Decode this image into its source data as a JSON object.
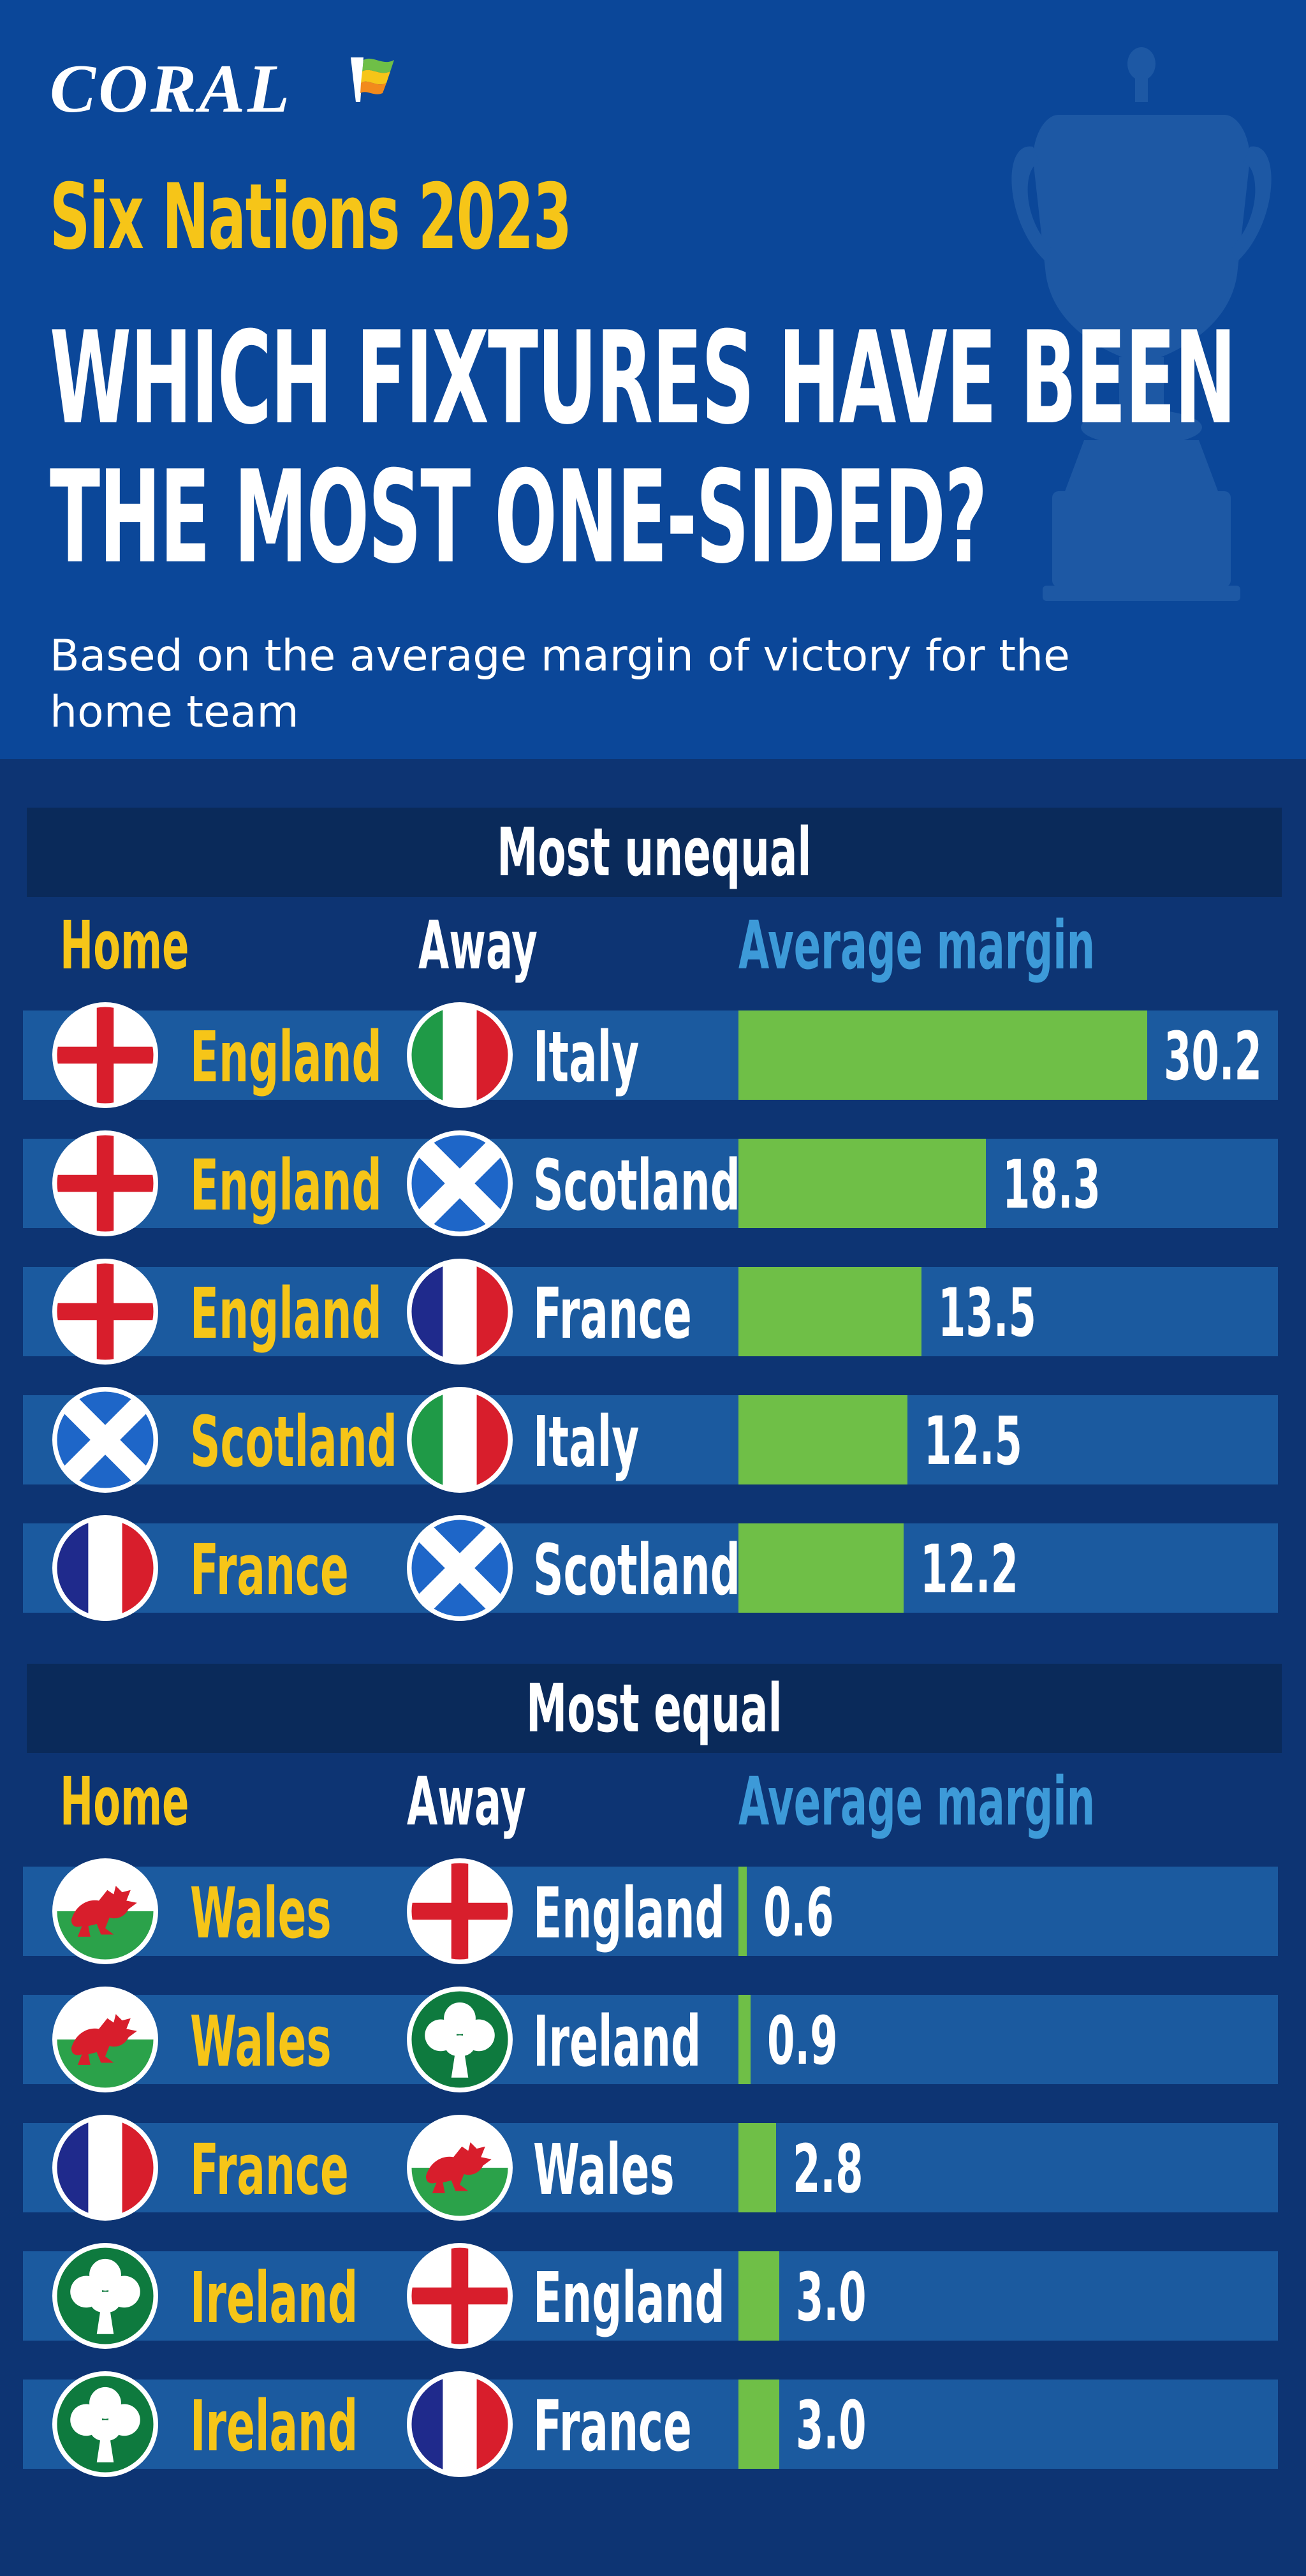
{
  "brand": {
    "logo_text": "CORAL"
  },
  "header": {
    "pre_title": "Six Nations 2023",
    "title_line1": "WHICH FIXTURES HAVE BEEN",
    "title_line2": "THE MOST ONE-SIDED?",
    "subtitle_line1": "Based on the average margin of victory for the",
    "subtitle_line2": "home team"
  },
  "columns": {
    "home": "Home",
    "away": "Away",
    "margin": "Average margin"
  },
  "colors": {
    "background": "#0d3473",
    "header_bg": "#0b4799",
    "section_head_bg": "#0a2a5a",
    "row_bg": "#1b5a9f",
    "bar": "#6fbf47",
    "home_text": "#f6c518",
    "margin_header_text": "#3d9ad8"
  },
  "chart_data": [
    {
      "type": "bar",
      "orientation": "horizontal",
      "title": "Most unequal",
      "xlim": [
        0,
        30.2
      ],
      "rows": [
        {
          "home": "England",
          "home_flag": "england-flag",
          "away": "Italy",
          "away_flag": "italy-flag",
          "value": 30.2,
          "label": "30.2"
        },
        {
          "home": "England",
          "home_flag": "england-flag",
          "away": "Scotland",
          "away_flag": "scotland-flag",
          "value": 18.3,
          "label": "18.3"
        },
        {
          "home": "England",
          "home_flag": "england-flag",
          "away": "France",
          "away_flag": "france-flag",
          "value": 13.5,
          "label": "13.5"
        },
        {
          "home": "Scotland",
          "home_flag": "scotland-flag",
          "away": "Italy",
          "away_flag": "italy-flag",
          "value": 12.5,
          "label": "12.5"
        },
        {
          "home": "France",
          "home_flag": "france-flag",
          "away": "Scotland",
          "away_flag": "scotland-flag",
          "value": 12.2,
          "label": "12.2"
        }
      ]
    },
    {
      "type": "bar",
      "orientation": "horizontal",
      "title": "Most equal",
      "xlim": [
        0,
        30.2
      ],
      "rows": [
        {
          "home": "Wales",
          "home_flag": "wales-flag",
          "away": "England",
          "away_flag": "england-flag",
          "value": 0.6,
          "label": "0.6"
        },
        {
          "home": "Wales",
          "home_flag": "wales-flag",
          "away": "Ireland",
          "away_flag": "ireland-shamrock",
          "value": 0.9,
          "label": "0.9"
        },
        {
          "home": "France",
          "home_flag": "france-flag",
          "away": "Wales",
          "away_flag": "wales-flag",
          "value": 2.8,
          "label": "2.8"
        },
        {
          "home": "Ireland",
          "home_flag": "ireland-shamrock",
          "away": "England",
          "away_flag": "england-flag",
          "value": 3.0,
          "label": "3.0"
        },
        {
          "home": "Ireland",
          "home_flag": "ireland-shamrock",
          "away": "France",
          "away_flag": "france-flag",
          "value": 3.0,
          "label": "3.0"
        }
      ]
    }
  ]
}
